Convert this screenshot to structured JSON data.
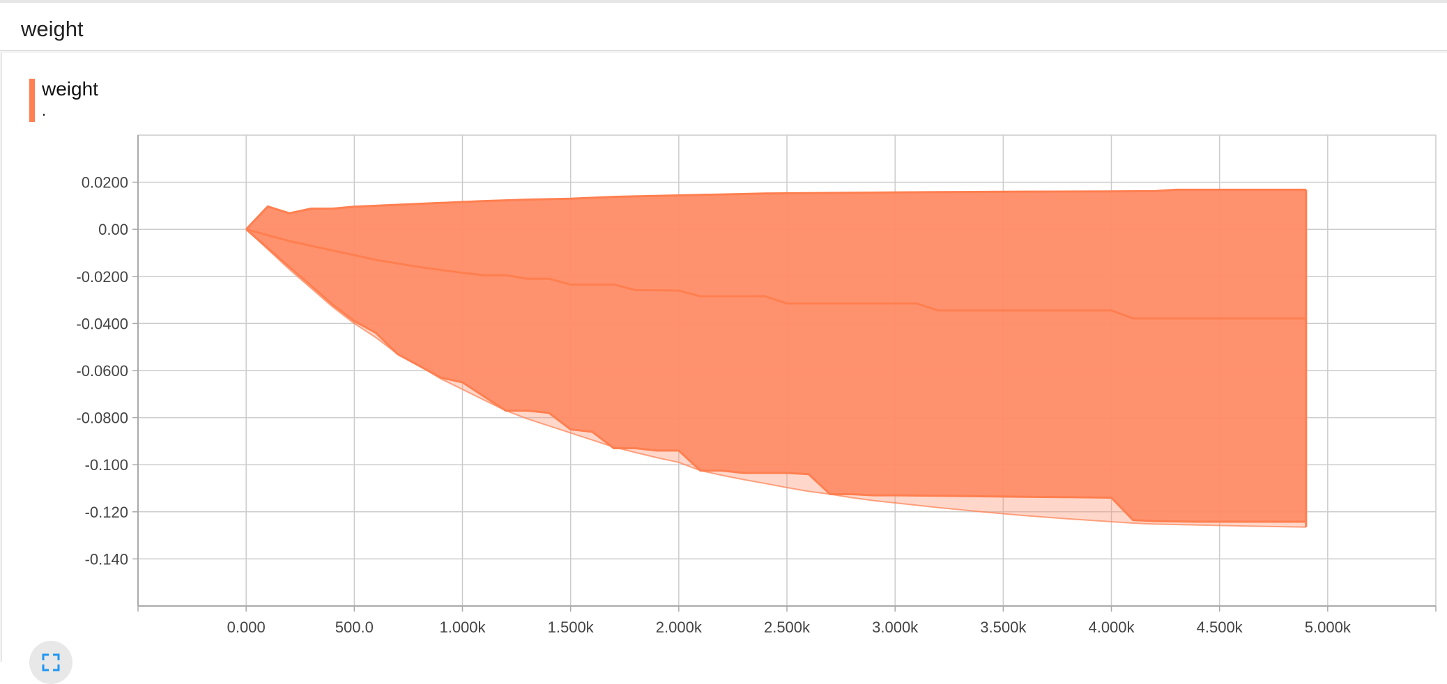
{
  "section": {
    "title": "weight"
  },
  "chart_title": "weight",
  "chart_subtitle": ".",
  "colors": {
    "band": "#ff7f50",
    "band_fill": "#ff8c66",
    "grid": "#cccccc",
    "axis": "#aaaaaa",
    "icon": "#2196f3"
  },
  "icons": {
    "expand": "fullscreen-icon"
  },
  "chart_data": {
    "type": "area",
    "title": "weight",
    "xlabel": "",
    "ylabel": "",
    "xlim": [
      -500,
      5500
    ],
    "ylim": [
      -0.16,
      0.04
    ],
    "grid": true,
    "legend": "none",
    "x_ticks": [
      0,
      500,
      1000,
      1500,
      2000,
      2500,
      3000,
      3500,
      4000,
      4500,
      5000
    ],
    "x_tick_labels": [
      "0.000",
      "500.0",
      "1.000k",
      "1.500k",
      "2.000k",
      "2.500k",
      "3.000k",
      "3.500k",
      "4.000k",
      "4.500k",
      "5.000k"
    ],
    "y_ticks": [
      0.02,
      0,
      -0.02,
      -0.04,
      -0.06,
      -0.08,
      -0.1,
      -0.12,
      -0.14
    ],
    "y_tick_labels": [
      "0.0200",
      "0.00",
      "-0.0200",
      "-0.0400",
      "-0.0600",
      "-0.0800",
      "-0.100",
      "-0.120",
      "-0.140"
    ],
    "series": [
      {
        "role": "max",
        "x": [
          0,
          100,
          200,
          300,
          400,
          500,
          700,
          900,
          1100,
          1300,
          1500,
          1700,
          2000,
          2400,
          2800,
          3200,
          3600,
          4000,
          4200,
          4300,
          4500,
          4900
        ],
        "y": [
          0,
          0.0097,
          0.0068,
          0.0088,
          0.0088,
          0.0096,
          0.0104,
          0.0112,
          0.012,
          0.0126,
          0.013,
          0.0138,
          0.0144,
          0.0152,
          0.0155,
          0.0158,
          0.016,
          0.0161,
          0.0162,
          0.0168,
          0.0168,
          0.0168
        ]
      },
      {
        "role": "median",
        "x": [
          0,
          200,
          400,
          600,
          800,
          1000,
          1100,
          1200,
          1300,
          1400,
          1500,
          1700,
          1800,
          2000,
          2100,
          2400,
          2500,
          3100,
          3200,
          4000,
          4100,
          4900
        ],
        "y": [
          0,
          -0.005,
          -0.009,
          -0.013,
          -0.016,
          -0.0185,
          -0.0195,
          -0.0195,
          -0.021,
          -0.021,
          -0.0235,
          -0.0235,
          -0.0258,
          -0.026,
          -0.0285,
          -0.0285,
          -0.0315,
          -0.0315,
          -0.0345,
          -0.0345,
          -0.0378,
          -0.0378
        ]
      },
      {
        "role": "inner-low",
        "x": [
          0,
          100,
          200,
          300,
          400,
          500,
          600,
          700,
          800,
          900,
          1000,
          1100,
          1200,
          1300,
          1400,
          1500,
          1600,
          1700,
          1800,
          1900,
          2000,
          2100,
          2200,
          2300,
          2400,
          2500,
          2600,
          2700,
          2800,
          2900,
          3000,
          3200,
          3400,
          3600,
          3800,
          4000,
          4100,
          4200,
          4400,
          4600,
          4900
        ],
        "y": [
          0,
          -0.008,
          -0.016,
          -0.024,
          -0.032,
          -0.039,
          -0.044,
          -0.053,
          -0.058,
          -0.063,
          -0.065,
          -0.071,
          -0.077,
          -0.077,
          -0.078,
          -0.085,
          -0.086,
          -0.093,
          -0.093,
          -0.094,
          -0.094,
          -0.1025,
          -0.1025,
          -0.1035,
          -0.1035,
          -0.1035,
          -0.104,
          -0.1125,
          -0.1125,
          -0.113,
          -0.113,
          -0.1132,
          -0.1134,
          -0.1136,
          -0.1138,
          -0.114,
          -0.1235,
          -0.124,
          -0.1242,
          -0.1242,
          -0.1242
        ]
      },
      {
        "role": "min",
        "x": [
          0,
          100,
          200,
          300,
          400,
          500,
          600,
          700,
          800,
          900,
          1000,
          1100,
          1200,
          1300,
          1400,
          1500,
          1600,
          1700,
          1800,
          1900,
          2000,
          2100,
          2200,
          2300,
          2400,
          2500,
          2600,
          2700,
          2800,
          2900,
          3000,
          3200,
          3400,
          3600,
          3800,
          4000,
          4100,
          4200,
          4400,
          4600,
          4900
        ],
        "y": [
          0,
          -0.0085,
          -0.017,
          -0.025,
          -0.033,
          -0.04,
          -0.046,
          -0.053,
          -0.058,
          -0.0635,
          -0.068,
          -0.0725,
          -0.077,
          -0.0805,
          -0.0835,
          -0.0865,
          -0.0895,
          -0.0925,
          -0.0948,
          -0.097,
          -0.099,
          -0.1025,
          -0.1045,
          -0.1063,
          -0.108,
          -0.1097,
          -0.1113,
          -0.1125,
          -0.114,
          -0.1152,
          -0.1162,
          -0.1182,
          -0.12,
          -0.1216,
          -0.123,
          -0.1242,
          -0.1248,
          -0.1252,
          -0.1256,
          -0.126,
          -0.1265
        ]
      }
    ]
  }
}
